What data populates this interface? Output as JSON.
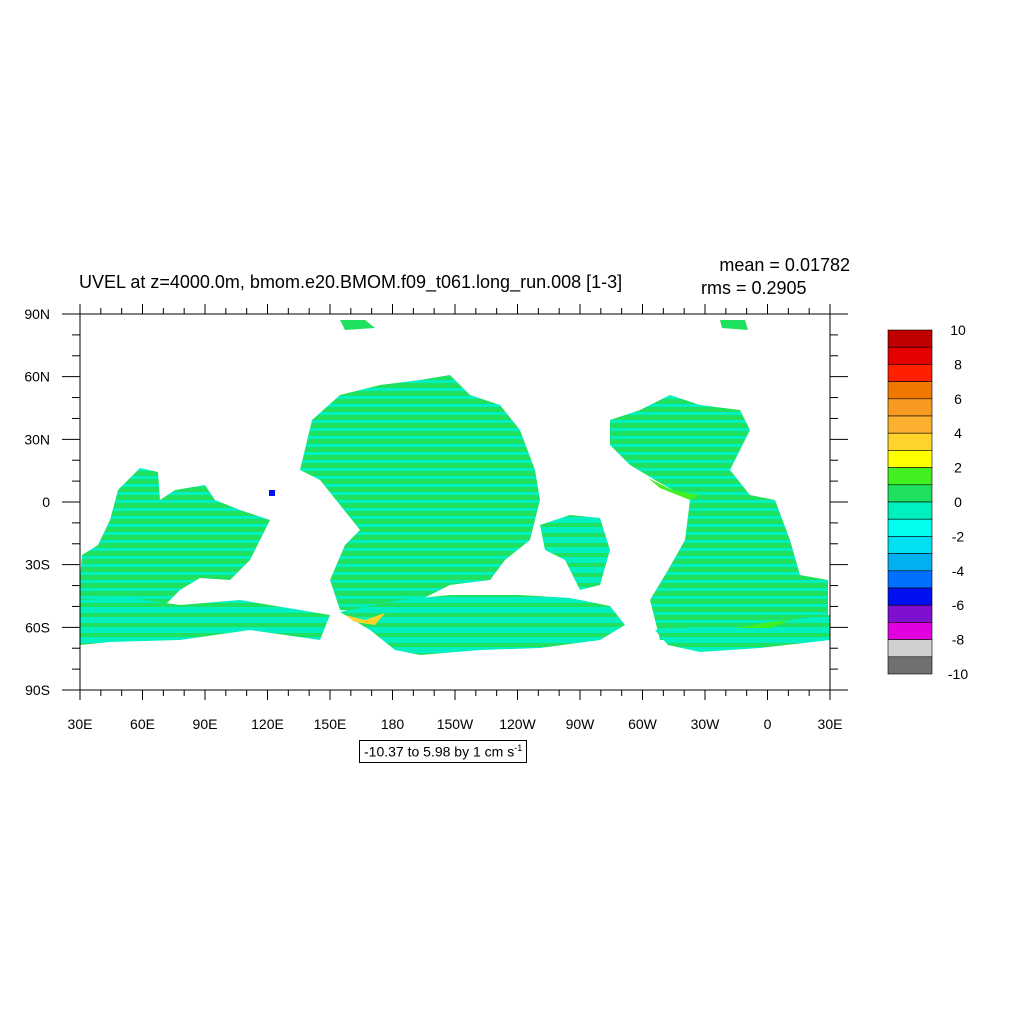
{
  "header": {
    "title": "UVEL at z=4000.0m, bmom.e20.BMOM.f09_t061.long_run.008 [1-3]",
    "mean": "mean = 0.01782",
    "rms": "rms = 0.2905"
  },
  "range_label": {
    "text": "-10.37 to 5.98 by 1 cm s",
    "unit_exp": "-1"
  },
  "chart_data": {
    "type": "heatmap",
    "variable": "UVEL",
    "x_ticks": [
      "30E",
      "60E",
      "90E",
      "120E",
      "150E",
      "180",
      "150W",
      "120W",
      "90W",
      "60W",
      "30W",
      "0",
      "30E"
    ],
    "y_ticks": [
      "90N",
      "60N",
      "30N",
      "0",
      "30S",
      "60S",
      "90S"
    ],
    "xlim": [
      30,
      390
    ],
    "ylim": [
      -90,
      90
    ],
    "colorbar": {
      "labels": [
        "10",
        "8",
        "6",
        "4",
        "2",
        "0",
        "-2",
        "-4",
        "-6",
        "-8",
        "-10"
      ],
      "levels": [
        10,
        9,
        8,
        7,
        6,
        5,
        4,
        3,
        2,
        1,
        0,
        -1,
        -2,
        -3,
        -4,
        -5,
        -6,
        -7,
        -8,
        -9,
        -10
      ],
      "colors": [
        "#c00000",
        "#e40000",
        "#ff2000",
        "#f07800",
        "#f89a20",
        "#fbb030",
        "#ffd42a",
        "#ffff00",
        "#40f020",
        "#20e060",
        "#00f0c0",
        "#00ffee",
        "#00e0f0",
        "#00b0f0",
        "#0070ff",
        "#0010f0",
        "#8010d0",
        "#e000e0",
        "#d0d0d0",
        "#707070"
      ]
    },
    "field": {
      "dominant_colors": [
        "#20e060",
        "#00f0c0",
        "#40f020"
      ],
      "extremes_note": "-10.37 to 5.98"
    }
  }
}
